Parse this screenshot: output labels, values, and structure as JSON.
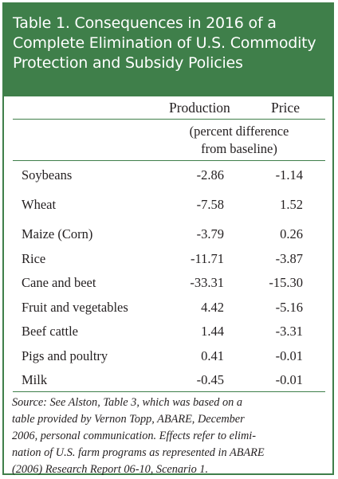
{
  "title_lines": [
    "Table 1. Consequences in 2016 of a",
    "Complete Elimination of U.S. Commodity",
    "Protection and Subsidy Policies"
  ],
  "columns": {
    "production": "Production",
    "price": "Price"
  },
  "units": [
    "(percent difference",
    "from baseline)"
  ],
  "rows": [
    {
      "label": "Soybeans",
      "production": "-2.86",
      "price": "-1.14"
    },
    {
      "label": "Wheat",
      "production": "-7.58",
      "price": "1.52"
    },
    {
      "label": "Maize (Corn)",
      "production": "-3.79",
      "price": "0.26"
    },
    {
      "label": "Rice",
      "production": "-11.71",
      "price": "-3.87"
    },
    {
      "label": "Cane and beet",
      "production": "-33.31",
      "price": "-15.30"
    },
    {
      "label": "Fruit and vegetables",
      "production": "4.42",
      "price": "-5.16"
    },
    {
      "label": "Beef cattle",
      "production": "1.44",
      "price": "-3.31"
    },
    {
      "label": "Pigs and poultry",
      "production": "0.41",
      "price": "-0.01"
    },
    {
      "label": "Milk",
      "production": "-0.45",
      "price": "-0.01"
    }
  ],
  "source_lines": [
    "Source:  See Alston, Table 3, which was based on a",
    "table provided by Vernon Topp, ABARE, December",
    "2006, personal communication. Effects refer to elimi-",
    "nation of U.S. farm programs as represented in ABARE",
    "(2006) Research Report 06-10, Scenario 1."
  ]
}
